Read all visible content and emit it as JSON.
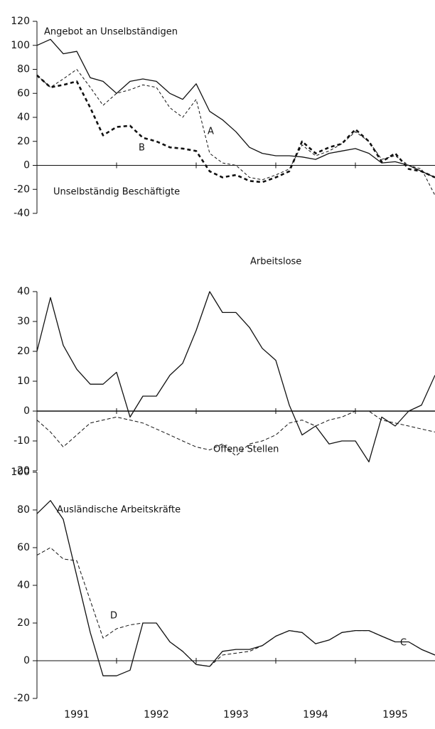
{
  "chart_data": [
    {
      "type": "line",
      "x": [
        1991,
        1991.17,
        1991.33,
        1991.5,
        1991.67,
        1991.83,
        1992,
        1992.17,
        1992.33,
        1992.5,
        1992.67,
        1992.83,
        1993,
        1993.17,
        1993.33,
        1993.5,
        1993.67,
        1993.83,
        1994,
        1994.17,
        1994.33,
        1994.5,
        1994.67,
        1994.83,
        1995,
        1995.17,
        1995.33,
        1995.5,
        1995.67,
        1995.83,
        1996
      ],
      "xlim": [
        1991,
        1996
      ],
      "xminor": [
        1992,
        1993,
        1994,
        1995
      ],
      "ylim": [
        -40,
        120
      ],
      "yticks": [
        -40,
        -20,
        0,
        20,
        40,
        60,
        80,
        100,
        120
      ],
      "annotations": [
        "Angebot an Unselbständigen",
        "A",
        "B",
        "Unselbständig Beschäftigte"
      ],
      "series": [
        {
          "color": "#111",
          "width": 1.3,
          "dash": "none",
          "values": [
            100,
            105,
            93,
            95,
            73,
            70,
            60,
            70,
            72,
            70,
            60,
            55,
            68,
            45,
            38,
            28,
            15,
            10,
            8,
            8,
            7,
            5,
            10,
            12,
            14,
            10,
            2,
            3,
            0,
            -5,
            -10
          ]
        },
        {
          "color": "#111",
          "width": 1,
          "dash": "4 3",
          "values": [
            75,
            65,
            72,
            80,
            65,
            50,
            60,
            63,
            67,
            65,
            48,
            40,
            55,
            10,
            2,
            0,
            -10,
            -12,
            -8,
            -3,
            17,
            8,
            12,
            18,
            28,
            20,
            5,
            8,
            0,
            -3,
            -25
          ]
        },
        {
          "color": "#111",
          "width": 2.6,
          "dash": "5 4",
          "values": [
            75,
            65,
            67,
            70,
            48,
            25,
            32,
            33,
            23,
            20,
            15,
            14,
            12,
            -5,
            -10,
            -8,
            -13,
            -14,
            -10,
            -5,
            20,
            10,
            15,
            18,
            30,
            20,
            3,
            10,
            -3,
            -5,
            -10
          ]
        }
      ]
    },
    {
      "type": "line",
      "x": [
        1991,
        1991.17,
        1991.33,
        1991.5,
        1991.67,
        1991.83,
        1992,
        1992.17,
        1992.33,
        1992.5,
        1992.67,
        1992.83,
        1993,
        1993.17,
        1993.33,
        1993.5,
        1993.67,
        1993.83,
        1994,
        1994.17,
        1994.33,
        1994.5,
        1994.67,
        1994.83,
        1995,
        1995.17,
        1995.33,
        1995.5,
        1995.67,
        1995.83,
        1996
      ],
      "xlim": [
        1991,
        1996
      ],
      "xminor": [
        1992,
        1993,
        1994,
        1995
      ],
      "ylim": [
        -20,
        40
      ],
      "yticks": [
        -20,
        -10,
        0,
        10,
        20,
        30,
        40
      ],
      "series": [
        {
          "name": "Arbeitslose",
          "color": "#111",
          "width": 1.3,
          "dash": "none",
          "values": [
            20,
            38,
            22,
            14,
            9,
            9,
            13,
            -2,
            5,
            5,
            12,
            16,
            27,
            40,
            33,
            33,
            28,
            21,
            17,
            2,
            -8,
            -5,
            -11,
            -10,
            -10,
            -17,
            -2,
            -5,
            0,
            2,
            12
          ]
        },
        {
          "name": "Offene Stellen",
          "color": "#111",
          "width": 1,
          "dash": "5 3",
          "values": [
            -3,
            -7,
            -12,
            -8,
            -4,
            -3,
            -2,
            -3,
            -4,
            -6,
            -8,
            -10,
            -12,
            -13,
            -11,
            -15,
            -11,
            -10,
            -8,
            -4,
            -3,
            -5,
            -3,
            -2,
            0,
            0,
            -3,
            -4,
            -5,
            -6,
            -7
          ]
        }
      ]
    },
    {
      "type": "line",
      "x": [
        1991,
        1991.17,
        1991.33,
        1991.5,
        1991.67,
        1991.83,
        1992,
        1992.17,
        1992.33,
        1992.5,
        1992.67,
        1992.83,
        1993,
        1993.17,
        1993.33,
        1993.5,
        1993.67,
        1993.83,
        1994,
        1994.17,
        1994.33,
        1994.5,
        1994.67,
        1994.83,
        1995,
        1995.17,
        1995.33,
        1995.5,
        1995.67,
        1995.83,
        1996
      ],
      "xlim": [
        1991,
        1996
      ],
      "xminor": [
        1992,
        1993,
        1994,
        1995
      ],
      "xticks": [
        {
          "value": 1991.5,
          "label": "1991"
        },
        {
          "value": 1992.5,
          "label": "1992"
        },
        {
          "value": 1993.5,
          "label": "1993"
        },
        {
          "value": 1994.5,
          "label": "1994"
        },
        {
          "value": 1995.5,
          "label": "1995"
        }
      ],
      "ylim": [
        -20,
        100
      ],
      "yticks": [
        -20,
        0,
        20,
        40,
        60,
        80,
        100
      ],
      "annotations": [
        "Ausländische Arbeitskräfte",
        "D",
        "C"
      ],
      "series": [
        {
          "color": "#111",
          "width": 1.3,
          "dash": "none",
          "values": [
            78,
            85,
            75,
            45,
            15,
            -8,
            -8,
            -5,
            20,
            20,
            10,
            5,
            -2,
            -3,
            5,
            6,
            6,
            8,
            13,
            16,
            15,
            9,
            11,
            15,
            16,
            16,
            13,
            10,
            10,
            6,
            3
          ]
        },
        {
          "color": "#111",
          "width": 1,
          "dash": "5 3",
          "values": [
            56,
            60,
            54,
            53,
            32,
            12,
            17,
            19,
            20,
            20,
            10,
            5,
            -2,
            -3,
            3,
            4,
            5,
            8,
            13,
            16,
            15,
            9,
            11,
            15,
            16,
            16,
            13,
            10,
            10,
            6,
            3
          ]
        }
      ]
    }
  ]
}
